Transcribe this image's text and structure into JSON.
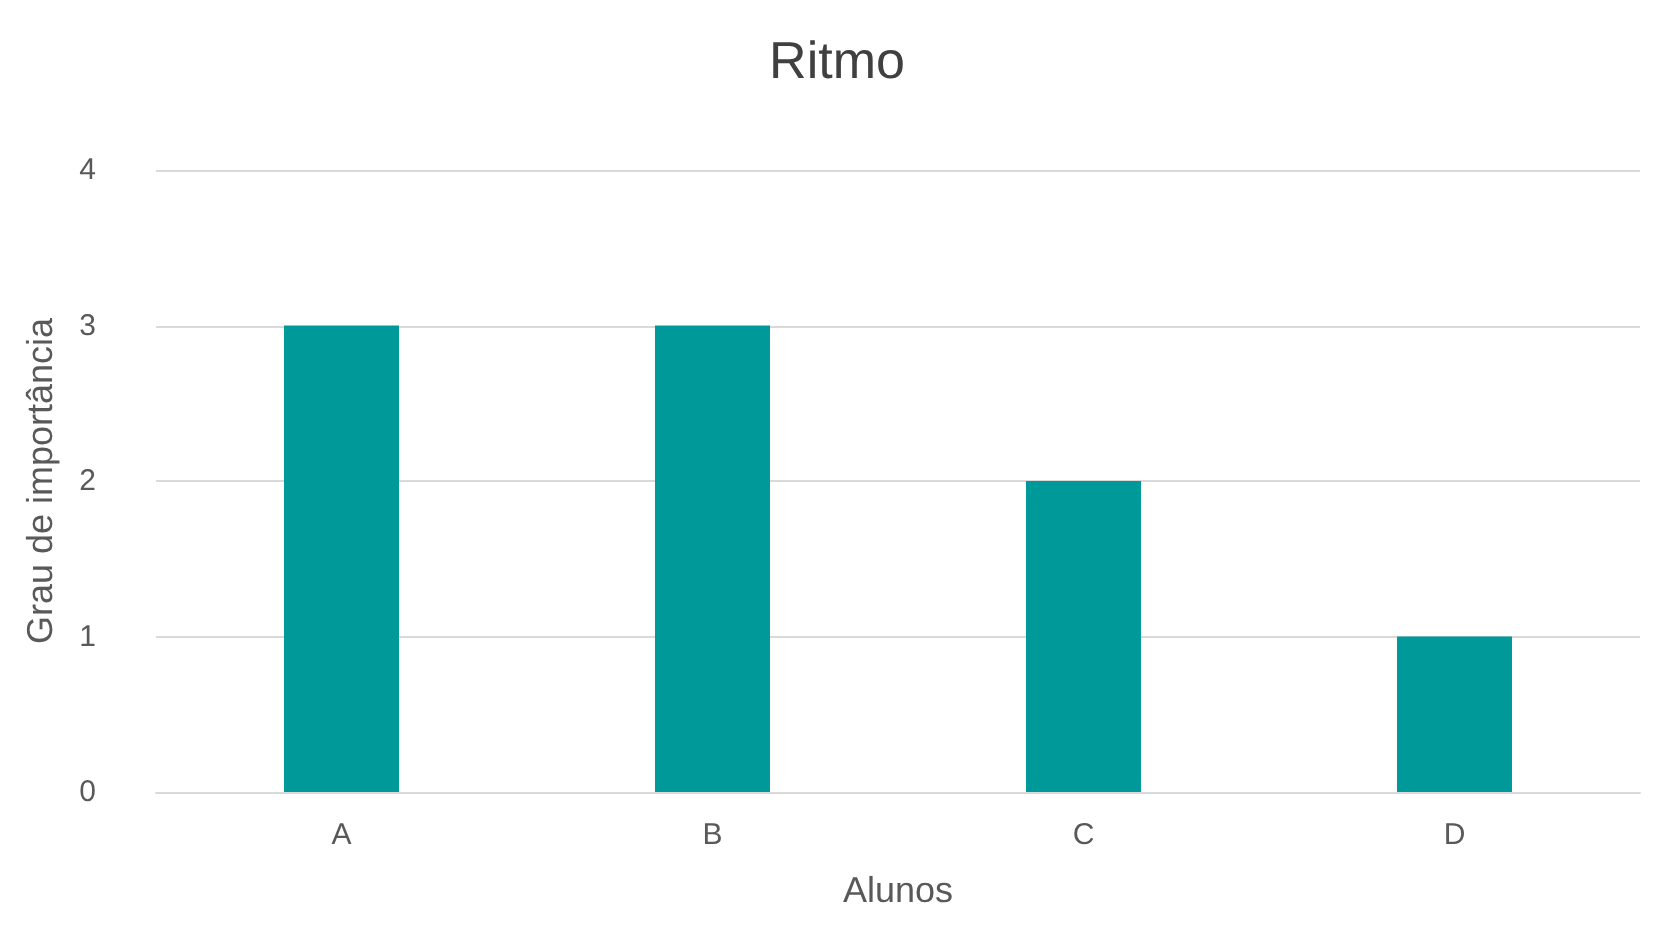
{
  "chart_data": {
    "type": "bar",
    "title": "Ritmo",
    "xlabel": "Alunos",
    "ylabel": "Grau de importância",
    "categories": [
      "A",
      "B",
      "C",
      "D"
    ],
    "values": [
      3,
      3,
      2,
      1
    ],
    "color": "#009999",
    "ylim": [
      0,
      4
    ],
    "yticks": [
      0,
      1,
      2,
      3,
      4
    ],
    "grid": "y"
  }
}
